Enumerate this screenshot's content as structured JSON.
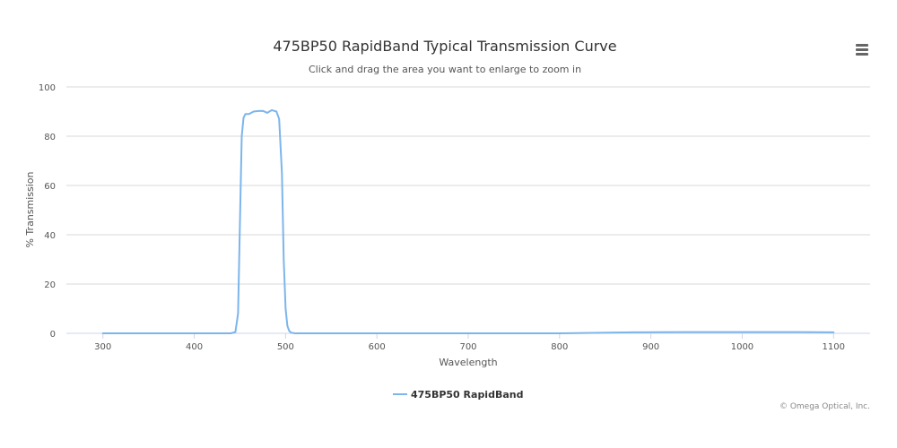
{
  "chart_data": {
    "type": "line",
    "title": "475BP50 RapidBand Typical Transmission Curve",
    "subtitle": "Click and drag the area you want to enlarge to zoom in",
    "xlabel": "Wavelength",
    "ylabel": "% Transmission",
    "xlim": [
      260,
      1140
    ],
    "ylim": [
      0,
      100
    ],
    "x_ticks": [
      300,
      400,
      500,
      600,
      700,
      800,
      900,
      1000,
      1100
    ],
    "y_ticks": [
      0,
      20,
      40,
      60,
      80,
      100
    ],
    "grid": "horizontal",
    "legend_position": "bottom-center",
    "credits": "© Omega Optical, Inc.",
    "colors": {
      "series": "#7cb5ec",
      "grid": "#d8d8d8",
      "text": "#333333",
      "axis_text": "#555555"
    },
    "series": [
      {
        "name": "475BP50 RapidBand",
        "x": [
          300,
          350,
          400,
          430,
          440,
          445,
          448,
          450,
          452,
          454,
          456,
          460,
          465,
          470,
          475,
          480,
          485,
          490,
          493,
          496,
          498,
          500,
          502,
          504,
          506,
          510,
          520,
          600,
          700,
          800,
          880,
          950,
          1000,
          1050,
          1100
        ],
        "y": [
          0,
          0,
          0,
          0,
          0,
          0.5,
          8,
          45,
          80,
          87.5,
          89,
          89,
          90,
          90.2,
          90.3,
          89.5,
          90.6,
          90,
          87,
          65,
          30,
          10,
          3,
          1,
          0.3,
          0,
          0,
          0,
          0,
          0,
          0.4,
          0.5,
          0.5,
          0.5,
          0.4
        ]
      }
    ]
  },
  "menu": {
    "icon": "hamburger-menu-icon"
  }
}
